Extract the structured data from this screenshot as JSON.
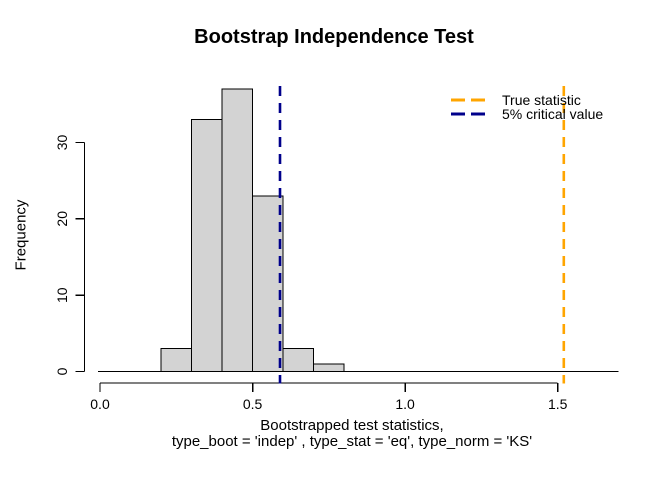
{
  "chart_data": {
    "type": "bar",
    "subtype": "histogram",
    "title": "Bootstrap Independence Test",
    "xlabel_line1": "Bootstrapped test statistics,",
    "xlabel_line2": "type_boot = 'indep' , type_stat = 'eq', type_norm = 'KS'",
    "ylabel": "Frequency",
    "bin_breaks": [
      0.2,
      0.3,
      0.4,
      0.5,
      0.6,
      0.7,
      0.8
    ],
    "counts": [
      3,
      33,
      37,
      23,
      3,
      1
    ],
    "x_ticks": [
      0.0,
      0.5,
      1.0,
      1.5
    ],
    "x_tick_labels": [
      "0.0",
      "0.5",
      "1.0",
      "1.5"
    ],
    "y_ticks": [
      0,
      10,
      20,
      30
    ],
    "y_tick_labels": [
      "0",
      "10",
      "20",
      "30"
    ],
    "xlim": [
      0,
      1.7
    ],
    "ylim": [
      0,
      37
    ],
    "grid": false,
    "bar_fill": "#D3D3D3",
    "bar_stroke": "#000000",
    "axis_color": "#000000",
    "vlines": [
      {
        "name": "true-statistic",
        "x": 1.52,
        "color": "#FFA500",
        "style": "dashed"
      },
      {
        "name": "critical-value-5pct",
        "x": 0.59,
        "color": "#00008B",
        "style": "dashed"
      }
    ],
    "legend": {
      "position": "topright",
      "entries": [
        {
          "label": "True statistic",
          "color": "#FFA500",
          "line_style": "dashed"
        },
        {
          "label": "5% critical value",
          "color": "#00008B",
          "line_style": "dashed"
        }
      ]
    }
  }
}
